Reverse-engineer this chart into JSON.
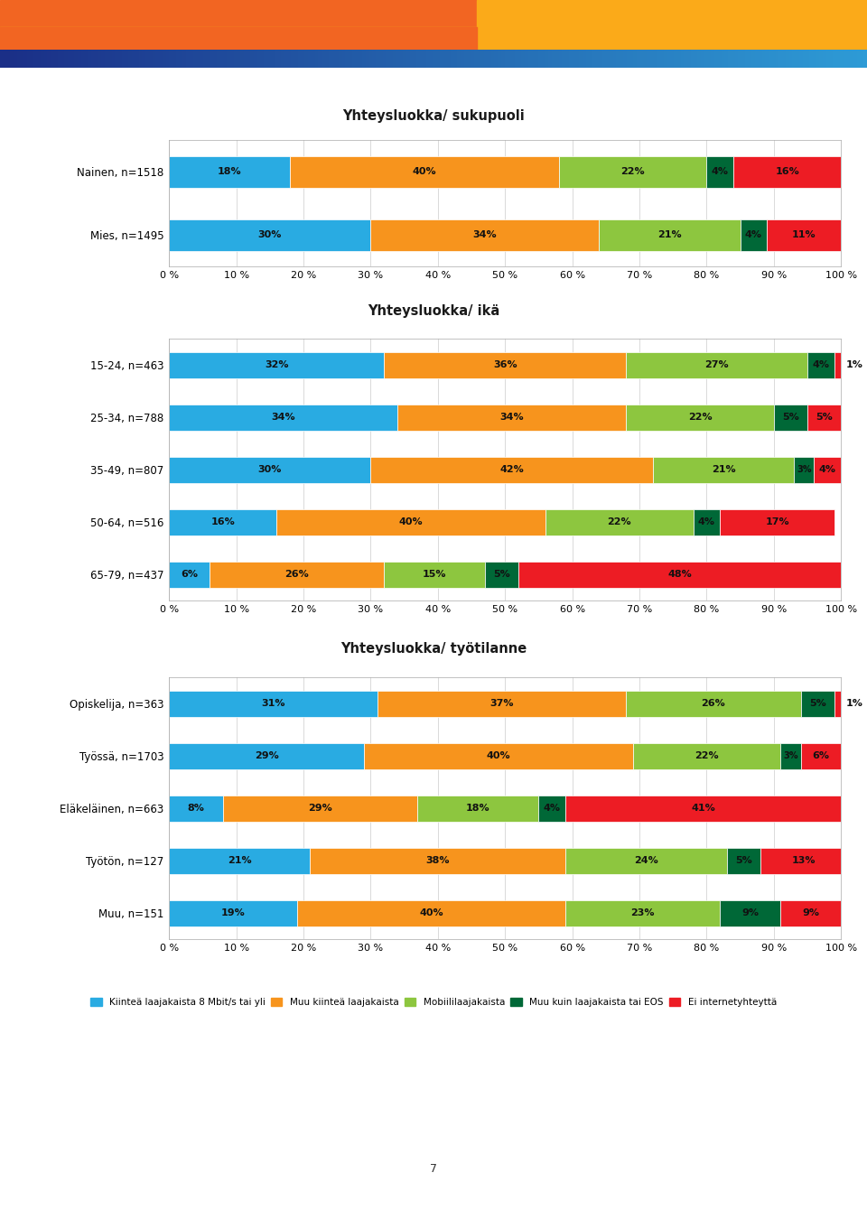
{
  "title1": "Yhteysluokka/ sukupuoli",
  "title2": "Yhteysluokka/ ikä",
  "title3": "Yhteysluokka/ työtilanne",
  "colors": [
    "#29ABE2",
    "#F7941D",
    "#8DC63F",
    "#006837",
    "#ED1C24"
  ],
  "legend_labels": [
    "Kiinteä laajakaista 8 Mbit/s tai yli",
    "Muu kiinteä laajakaista",
    "Mobiililaajakaista",
    "Muu kuin laajakaista tai EOS",
    "Ei internetyhteyttä"
  ],
  "group1": {
    "labels": [
      "Nainen, n=1518",
      "Mies, n=1495"
    ],
    "values": [
      [
        18,
        40,
        22,
        4,
        16
      ],
      [
        30,
        34,
        21,
        4,
        11
      ]
    ]
  },
  "group2": {
    "labels": [
      "15-24, n=463",
      "25-34, n=788",
      "35-49, n=807",
      "50-64, n=516",
      "65-79, n=437"
    ],
    "values": [
      [
        32,
        36,
        27,
        4,
        1
      ],
      [
        34,
        34,
        22,
        5,
        5
      ],
      [
        30,
        42,
        21,
        3,
        4
      ],
      [
        16,
        40,
        22,
        4,
        17
      ],
      [
        6,
        26,
        15,
        5,
        48
      ]
    ]
  },
  "group3": {
    "labels": [
      "Opiskelija, n=363",
      "Työssä, n=1703",
      "Eläkeläinen, n=663",
      "Työtön, n=127",
      "Muu, n=151"
    ],
    "values": [
      [
        31,
        37,
        26,
        5,
        1
      ],
      [
        29,
        40,
        22,
        3,
        6
      ],
      [
        8,
        29,
        18,
        4,
        41
      ],
      [
        21,
        38,
        24,
        5,
        13
      ],
      [
        19,
        40,
        23,
        9,
        9
      ]
    ]
  },
  "xticks": [
    0,
    10,
    20,
    30,
    40,
    50,
    60,
    70,
    80,
    90,
    100
  ],
  "bar_height": 0.5,
  "fontsize_title": 10.5,
  "fontsize_label": 8.5,
  "fontsize_bar": 8,
  "fontsize_legend": 7.5,
  "fontsize_tick": 8,
  "fontsize_pagenum": 9,
  "header_orange_top": "#F26522",
  "header_orange_bot": "#FBAA19",
  "header_blue_left": "#1B2F87",
  "header_blue_right": "#2E9BD6",
  "grid_color": "#CCCCCC",
  "spine_color": "#AAAAAA",
  "text_color": "#1a1a1a"
}
